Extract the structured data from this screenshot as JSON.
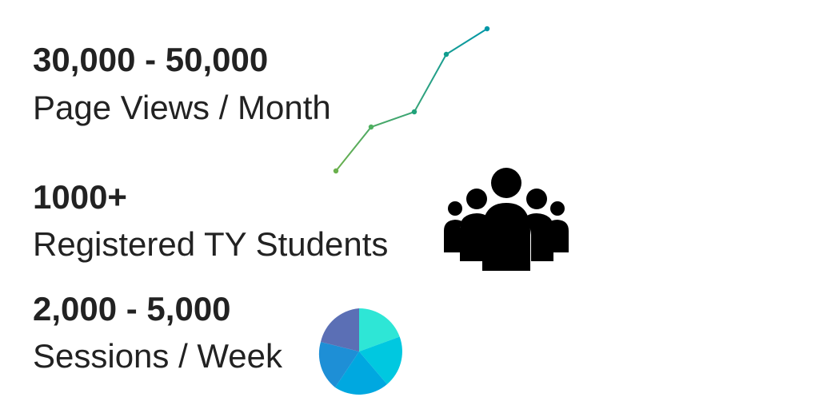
{
  "stats": [
    {
      "value": "30,000 - 50,000",
      "label": "Page Views / Month"
    },
    {
      "value": "1000+",
      "label": "Registered TY Students"
    },
    {
      "value": "2,000 - 5,000",
      "label": "Sessions / Week"
    }
  ],
  "icons": {
    "trend": "line-trend-icon",
    "people": "group-people-icon",
    "pie": "pie-chart-icon"
  },
  "colors": {
    "text": "#222222",
    "line_start": "#6ab04c",
    "line_end": "#0097a7",
    "people": "#000000",
    "pie": [
      "#2ee6d6",
      "#00c8e0",
      "#00a8e0",
      "#1e8fd6",
      "#5b6fb5"
    ]
  }
}
